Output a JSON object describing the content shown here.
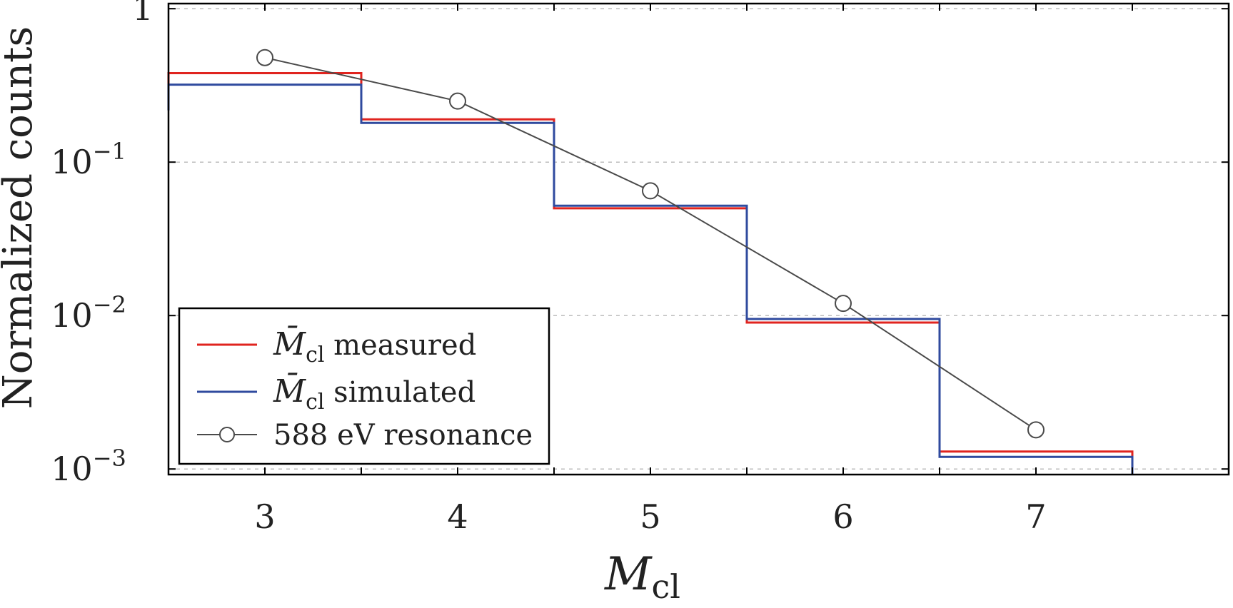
{
  "chart_data": {
    "type": "line",
    "title": "",
    "xlabel": {
      "base": "M",
      "sub": "cl"
    },
    "ylabel": "Normalized counts",
    "x_ticks": [
      3,
      4,
      5,
      6,
      7
    ],
    "x_tick_labels": [
      "3",
      "4",
      "5",
      "6",
      "7"
    ],
    "y_ticks": [
      {
        "value": 1,
        "base": "1",
        "exp": ""
      },
      {
        "value": 0.1,
        "base": "10",
        "exp": "−1"
      },
      {
        "value": 0.01,
        "base": "10",
        "exp": "−2"
      },
      {
        "value": 0.001,
        "base": "10",
        "exp": "−3"
      }
    ],
    "xlim": [
      2.5,
      8.0
    ],
    "ylim": [
      0.00092,
      1.08
    ],
    "y_scale": "log",
    "grid": "horizontal dashed",
    "legend_position": "bottom-left",
    "series": [
      {
        "name": "measured",
        "legend_main": "M̄",
        "legend_sub": "cl",
        "legend_rest": " measured",
        "style": "step",
        "color": "#e0241f",
        "bins": [
          {
            "x": 3,
            "value": 0.38
          },
          {
            "x": 4,
            "value": 0.19
          },
          {
            "x": 5,
            "value": 0.05
          },
          {
            "x": 6,
            "value": 0.009
          },
          {
            "x": 7,
            "value": 0.0013
          }
        ]
      },
      {
        "name": "simulated",
        "legend_main": "M̄",
        "legend_sub": "cl",
        "legend_rest": " simulated",
        "style": "step",
        "color": "#2f4a9e",
        "bins": [
          {
            "x": 3,
            "value": 0.32
          },
          {
            "x": 4,
            "value": 0.18
          },
          {
            "x": 5,
            "value": 0.052
          },
          {
            "x": 6,
            "value": 0.0095
          },
          {
            "x": 7,
            "value": 0.0012
          }
        ]
      },
      {
        "name": "588 eV resonance",
        "legend_main": "588 eV resonance",
        "legend_sub": "",
        "legend_rest": "",
        "style": "line-markers",
        "color": "#4a4a4a",
        "x": [
          3,
          4,
          5,
          6,
          7
        ],
        "values": [
          0.48,
          0.25,
          0.065,
          0.012,
          0.0018
        ]
      }
    ]
  }
}
